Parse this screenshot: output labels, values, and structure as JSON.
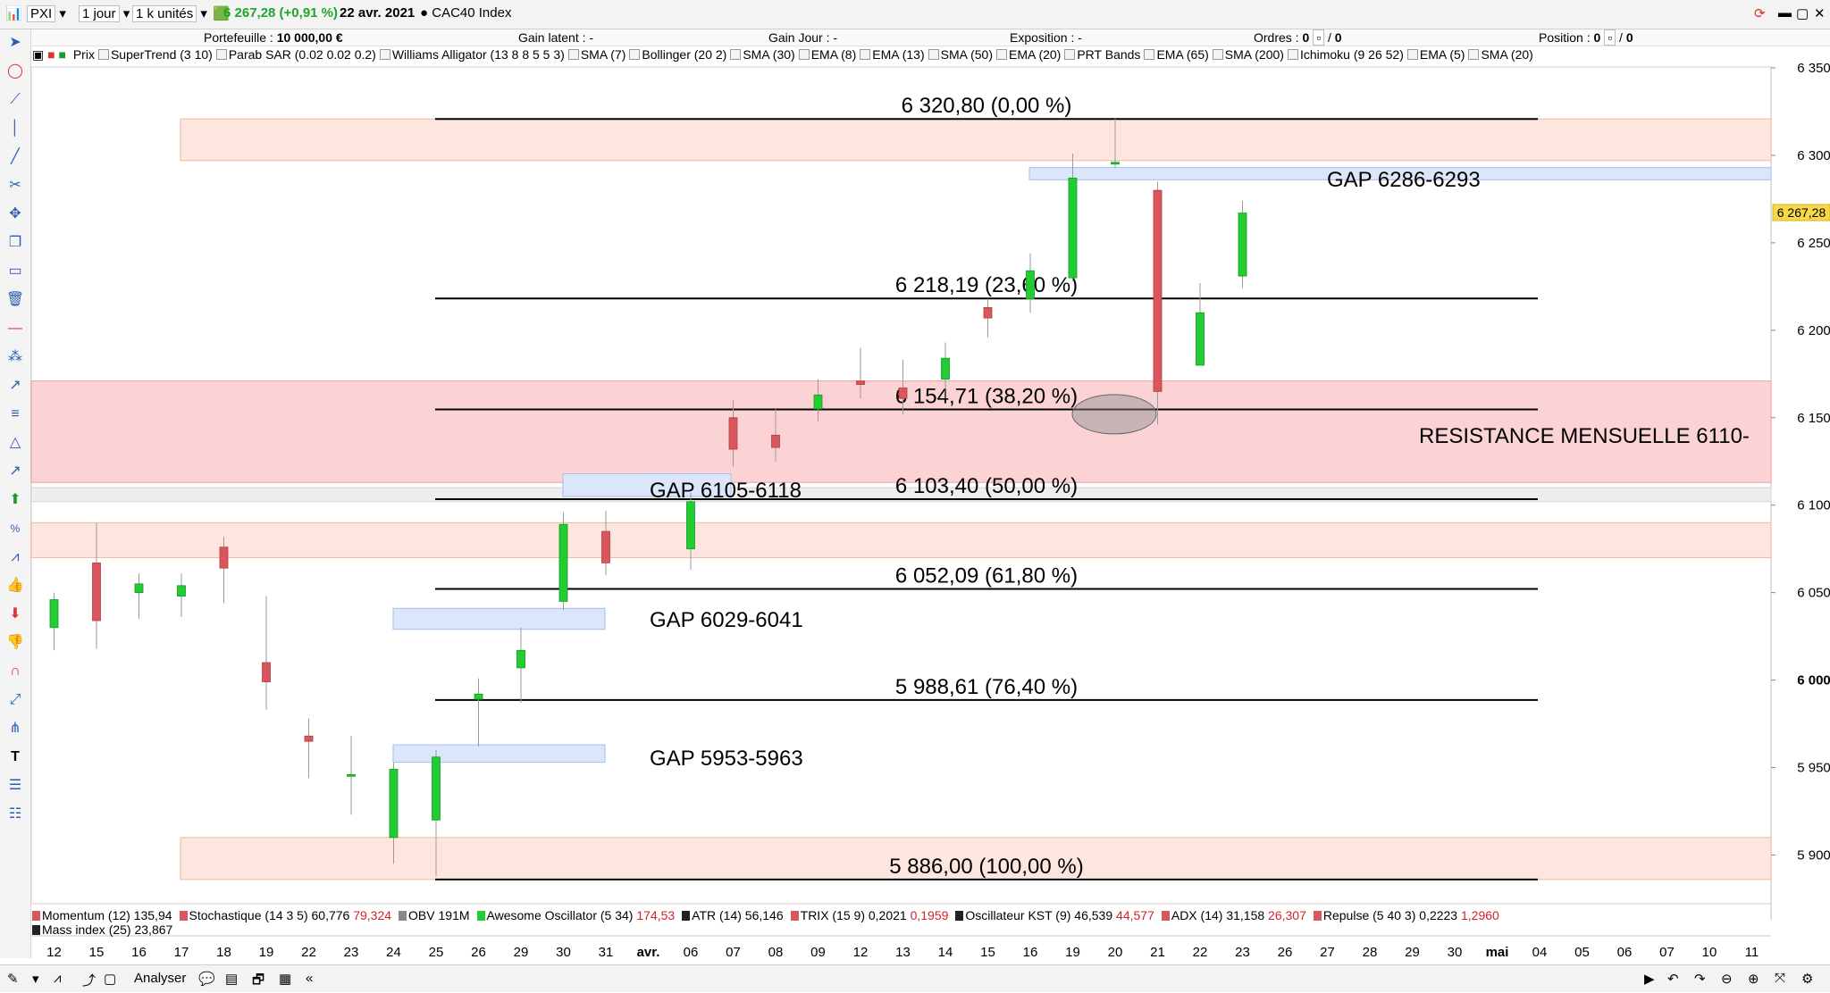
{
  "toolbar": {
    "symbol": "PXI",
    "period": "1 jour",
    "units": "1 k unités",
    "last_change": "6 267,28 (+0,91 %)",
    "date": "22 avr. 2021",
    "instrument": "CAC40 Index"
  },
  "info": {
    "portefeuille_label": "Portefeuille :",
    "portefeuille_value": "10 000,00 €",
    "gain_latent": "Gain latent : -",
    "gain_jour": "Gain Jour : -",
    "exposition": "Exposition : -",
    "ordres_label": "Ordres :",
    "ordres_value": "0",
    "position_label": "Position :",
    "position_value": "0"
  },
  "indicators_legend": [
    "Prix",
    "SuperTrend (3 10)",
    "Parab SAR (0.02 0.02 0.2)",
    "Williams Alligator (13 8 8 5 5 3)",
    "SMA (7)",
    "Bollinger (20 2)",
    "SMA (30)",
    "EMA (8)",
    "EMA (13)",
    "SMA (50)",
    "EMA (20)",
    "PRT Bands",
    "EMA (65)",
    "SMA (200)",
    "Ichimoku (9 26 52)",
    "EMA (5)",
    "SMA (20)"
  ],
  "chart_data": {
    "type": "candlestick",
    "y_ticks": [
      "6 350",
      "6 300",
      "6 250",
      "6 200",
      "6 150",
      "6 100",
      "6 050",
      "6 000",
      "5 950",
      "5 900"
    ],
    "last_price_label": "6 267,28",
    "x_labels": [
      "12",
      "15",
      "16",
      "17",
      "18",
      "19",
      "22",
      "23",
      "24",
      "25",
      "26",
      "29",
      "30",
      "31",
      "avr.",
      "06",
      "07",
      "08",
      "09",
      "12",
      "13",
      "14",
      "15",
      "16",
      "19",
      "20",
      "21",
      "22",
      "23",
      "26",
      "27",
      "28",
      "29",
      "30",
      "mai",
      "04",
      "05",
      "06",
      "07",
      "10",
      "11"
    ],
    "candles": [
      {
        "d": "12",
        "o": 6030,
        "h": 6050,
        "l": 6017,
        "c": 6046
      },
      {
        "d": "15",
        "o": 6067,
        "h": 6090,
        "l": 6018,
        "c": 6034
      },
      {
        "d": "16",
        "o": 6050,
        "h": 6061,
        "l": 6035,
        "c": 6055
      },
      {
        "d": "17",
        "o": 6048,
        "h": 6061,
        "l": 6036,
        "c": 6054
      },
      {
        "d": "18",
        "o": 6076,
        "h": 6082,
        "l": 6044,
        "c": 6064
      },
      {
        "d": "19",
        "o": 6010,
        "h": 6048,
        "l": 5983,
        "c": 5999
      },
      {
        "d": "22",
        "o": 5968,
        "h": 5978,
        "l": 5944,
        "c": 5965
      },
      {
        "d": "23",
        "o": 5945,
        "h": 5968,
        "l": 5923,
        "c": 5946
      },
      {
        "d": "24",
        "o": 5910,
        "h": 5953,
        "l": 5895,
        "c": 5949
      },
      {
        "d": "25",
        "o": 5920,
        "h": 5960,
        "l": 5888,
        "c": 5956
      },
      {
        "d": "26",
        "o": 5989,
        "h": 6001,
        "l": 5962,
        "c": 5992
      },
      {
        "d": "29",
        "o": 6007,
        "h": 6030,
        "l": 5987,
        "c": 6017
      },
      {
        "d": "30",
        "o": 6045,
        "h": 6096,
        "l": 6040,
        "c": 6089
      },
      {
        "d": "31",
        "o": 6085,
        "h": 6097,
        "l": 6060,
        "c": 6067
      },
      {
        "d": "01",
        "o": 6075,
        "h": 6107,
        "l": 6063,
        "c": 6102
      },
      {
        "d": "06",
        "o": 6150,
        "h": 6160,
        "l": 6122,
        "c": 6132
      },
      {
        "d": "07",
        "o": 6140,
        "h": 6155,
        "l": 6125,
        "c": 6133
      },
      {
        "d": "08",
        "o": 6155,
        "h": 6172,
        "l": 6148,
        "c": 6163
      },
      {
        "d": "09",
        "o": 6171,
        "h": 6190,
        "l": 6161,
        "c": 6169
      },
      {
        "d": "12",
        "o": 6167,
        "h": 6183,
        "l": 6152,
        "c": 6161
      },
      {
        "d": "13",
        "o": 6172,
        "h": 6193,
        "l": 6161,
        "c": 6184
      },
      {
        "d": "14",
        "o": 6213,
        "h": 6218,
        "l": 6196,
        "c": 6207
      },
      {
        "d": "15",
        "o": 6218,
        "h": 6244,
        "l": 6210,
        "c": 6234
      },
      {
        "d": "16",
        "o": 6230,
        "h": 6301,
        "l": 6228,
        "c": 6287
      },
      {
        "d": "19",
        "o": 6295,
        "h": 6321,
        "l": 6293,
        "c": 6296
      },
      {
        "d": "20",
        "o": 6280,
        "h": 6285,
        "l": 6146,
        "c": 6165
      },
      {
        "d": "21",
        "o": 6180,
        "h": 6227,
        "l": 6180,
        "c": 6210
      },
      {
        "d": "22",
        "o": 6231,
        "h": 6274,
        "l": 6224,
        "c": 6267
      }
    ],
    "fib_levels": [
      {
        "value": 6320.8,
        "label": "6 320,80 (0,00 %)"
      },
      {
        "value": 6218.19,
        "label": "6 218,19 (23,60 %)"
      },
      {
        "value": 6154.71,
        "label": "6 154,71 (38,20 %)"
      },
      {
        "value": 6103.4,
        "label": "6 103,40 (50,00 %)"
      },
      {
        "value": 6052.09,
        "label": "6 052,09 (61,80 %)"
      },
      {
        "value": 5988.61,
        "label": "5 988,61 (76,40 %)"
      },
      {
        "value": 5886.0,
        "label": "5 886,00 (100,00 %)"
      }
    ],
    "gaps": [
      {
        "label": "GAP 6286-6293",
        "lo": 6286,
        "hi": 6293
      },
      {
        "label": "GAP 6105-6118",
        "lo": 6105,
        "hi": 6118
      },
      {
        "label": "GAP 6029-6041",
        "lo": 6029,
        "hi": 6041
      },
      {
        "label": "GAP 5953-5963",
        "lo": 5953,
        "hi": 5963
      }
    ],
    "resistance_label": "RESISTANCE MENSUELLE 6110-",
    "colors": {
      "up": "#22cc33",
      "down": "#d9575c",
      "zone_light": "#fde6dd",
      "zone_red": "#fcd3d5",
      "gap": "#dbe6fa"
    }
  },
  "indicators_panel": {
    "row1": [
      {
        "name": "Momentum (12)",
        "v1": "135,94",
        "v2": "",
        "color": "#d9575c"
      },
      {
        "name": "Stochastique (14 3 5)",
        "v1": "60,776",
        "v2": "79,324",
        "color": "#d9575c"
      },
      {
        "name": "OBV",
        "v1": "191M",
        "v2": "",
        "color": "#888888"
      },
      {
        "name": "Awesome Oscillator (5 34)",
        "v1": "",
        "v2": "174,53",
        "color": "#22cc33"
      },
      {
        "name": "ATR (14)",
        "v1": "56,146",
        "v2": "",
        "color": "#222222"
      },
      {
        "name": "TRIX (15 9)",
        "v1": "0,2021",
        "v2": "0,1959",
        "color": "#d9575c"
      },
      {
        "name": "Oscillateur KST (9)",
        "v1": "46,539",
        "v2": "44,577",
        "color": "#222222"
      },
      {
        "name": "ADX (14)",
        "v1": "31,158",
        "v2": "26,307",
        "color": "#d9575c"
      },
      {
        "name": "Repulse (5 40 3)",
        "v1": "0,2223",
        "v2": "1,2960",
        "color": "#d9575c"
      }
    ],
    "row2": [
      {
        "name": "Mass index (25)",
        "v1": "23,867",
        "color": "#222222"
      }
    ]
  },
  "bottom": {
    "analyser": "Analyser"
  }
}
